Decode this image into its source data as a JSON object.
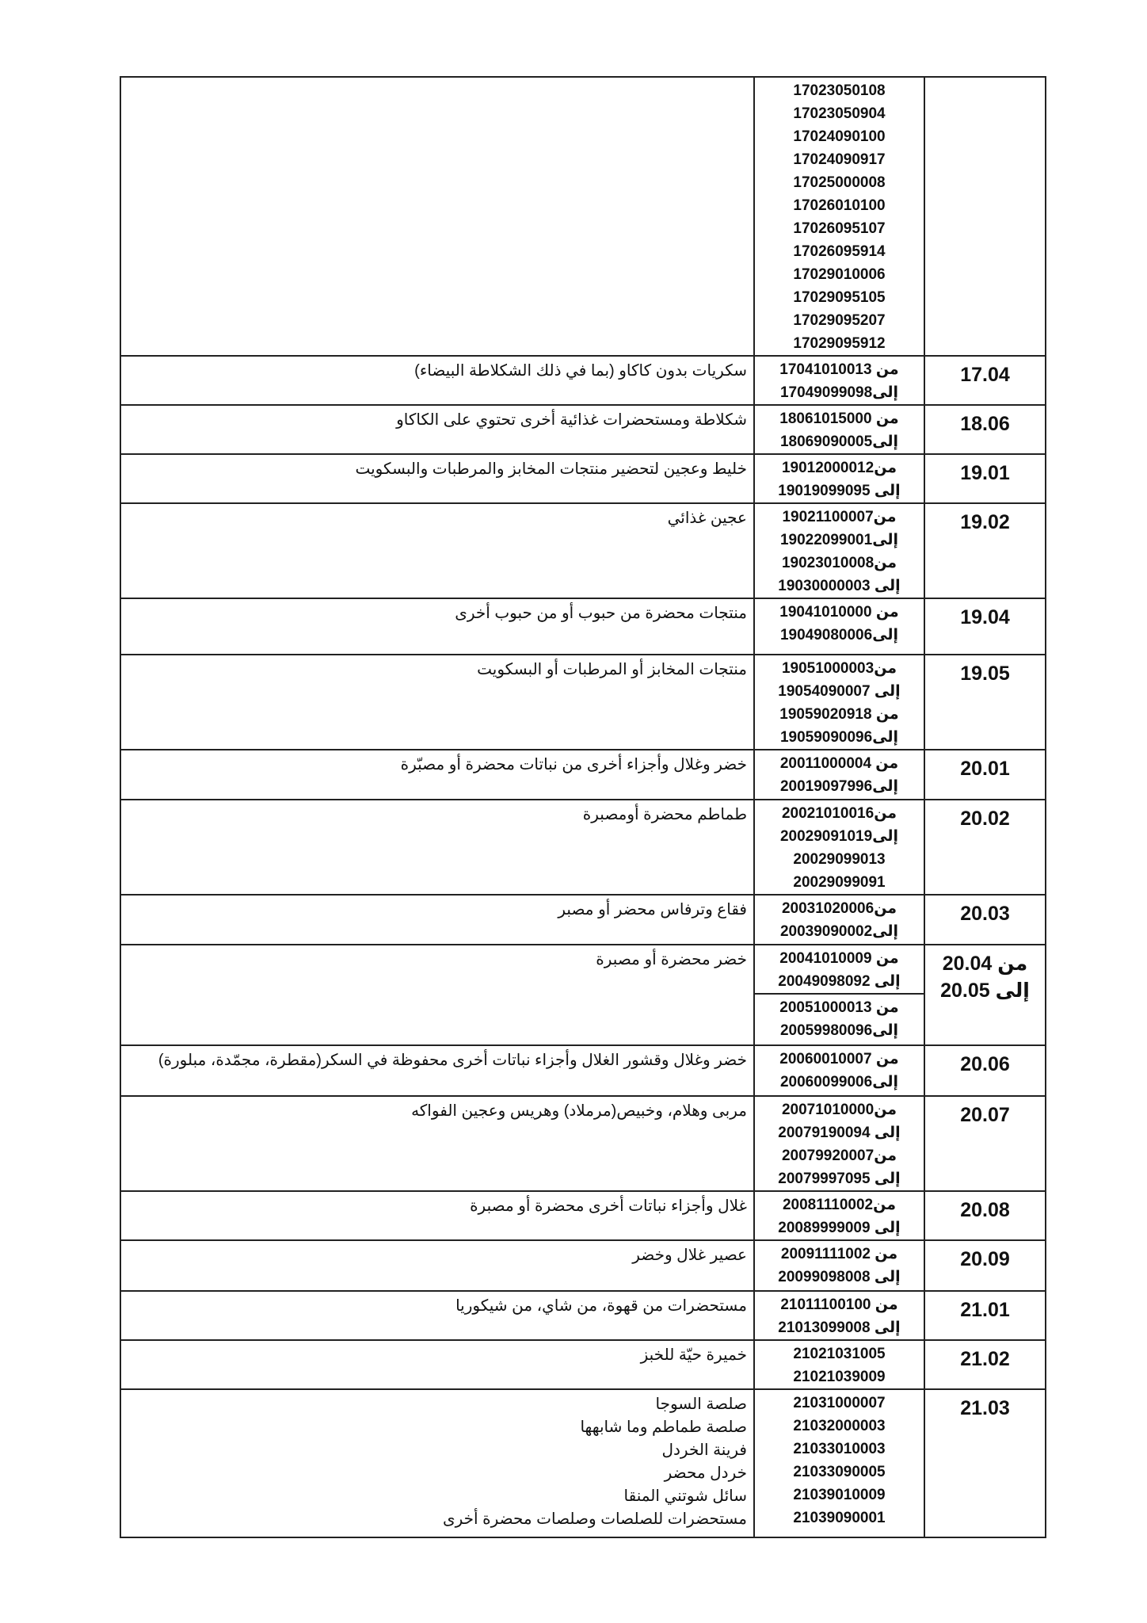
{
  "rows": [
    {
      "heading": "",
      "desc": [],
      "codes": [
        [
          "17023050108",
          "17023050904",
          "17024090100",
          "17024090917",
          "17025000008",
          "17026010100",
          "17026095107",
          "17026095914",
          "17029010006",
          "17029095105",
          "17029095207",
          "17029095912"
        ]
      ]
    },
    {
      "heading": "17.04",
      "desc": [
        "سكريات بدون كاكاو (بما في ذلك الشكلاطة البيضاء)"
      ],
      "codes": [
        [
          "من 17041010013",
          "إلى17049099098"
        ]
      ]
    },
    {
      "heading": "18.06",
      "desc": [
        "شكلاطة ومستحضرات غذائية أخرى تحتوي على الكاكاو"
      ],
      "codes": [
        [
          "من 18061015000",
          "إلى18069090005"
        ]
      ]
    },
    {
      "heading": "19.01",
      "desc": [
        "خليط وعجين لتحضير منتجات المخابز والمرطبات والبسكويت"
      ],
      "codes": [
        [
          "من19012000012",
          "إلى 19019099095"
        ]
      ]
    },
    {
      "heading": "19.02",
      "desc": [
        "عجين غذائي"
      ],
      "codes": [
        [
          "من19021100007",
          "إلى19022099001",
          "من19023010008",
          "إلى 19030000003"
        ]
      ]
    },
    {
      "heading": "19.04",
      "desc": [
        "منتجات محضرة من حبوب أو من حبوب أخرى"
      ],
      "codes": [
        [
          "من 19041010000",
          "إلى19049080006"
        ]
      ]
    },
    {
      "heading": "19.05",
      "desc": [
        "منتجات المخابز أو المرطبات أو البسكويت"
      ],
      "codes": [
        [
          "من19051000003",
          "إلى 19054090007",
          "من 19059020918",
          "إلى19059090096"
        ]
      ]
    },
    {
      "heading": "20.01",
      "desc": [
        "خضر وغلال وأجزاء أخرى من نباتات محضرة أو مصبّرة"
      ],
      "codes": [
        [
          "من 20011000004",
          "إلى20019097996"
        ]
      ]
    },
    {
      "heading": "20.02",
      "desc": [
        "طماطم محضرة أومصبرة"
      ],
      "codes": [
        [
          "من20021010016",
          "إلى20029091019",
          "20029099013",
          "20029099091"
        ]
      ]
    },
    {
      "heading": "20.03",
      "desc": [
        "فقاع وترفاس محضر أو مصبر"
      ],
      "codes": [
        [
          "من20031020006",
          "إلى20039090002"
        ]
      ]
    },
    {
      "heading": "من 20.04 إلى 20.05",
      "desc": [
        "خضر محضرة أو مصبرة"
      ],
      "codes": [
        [
          "من 20041010009",
          "إلى 20049098092"
        ],
        [
          "من 20051000013",
          "إلى20059980096"
        ]
      ]
    },
    {
      "heading": "20.06",
      "desc": [
        "خضر وغلال وقشور الغلال وأجزاء نباتات أخرى محفوظة في السكر(مقطرة، مجمّدة، مبلورة)"
      ],
      "codes": [
        [
          "من 20060010007",
          "إلى20060099006"
        ]
      ]
    },
    {
      "heading": "20.07",
      "desc": [
        "مربى وهلام، وخبيص(مرملاد) وهريس وعجين الفواكه"
      ],
      "codes": [
        [
          "من20071010000",
          "إلى 20079190094",
          "من20079920007",
          "إلى 20079997095"
        ]
      ]
    },
    {
      "heading": "20.08",
      "desc": [
        "غلال وأجزاء نباتات أخرى محضرة أو مصبرة"
      ],
      "codes": [
        [
          "من20081110002",
          "إلى 20089999009"
        ]
      ]
    },
    {
      "heading": "20.09",
      "desc": [
        "عصير غلال وخضر"
      ],
      "codes": [
        [
          "من 20091111002",
          "إلى 20099098008"
        ]
      ]
    },
    {
      "heading": "21.01",
      "desc": [
        "مستحضرات من قهوة، من شاي، من شيكوريا"
      ],
      "codes": [
        [
          "من 21011100100",
          "إلى 21013099008"
        ]
      ]
    },
    {
      "heading": "21.02",
      "desc": [
        "خميرة حيّة للخبز"
      ],
      "codes": [
        [
          "21021031005",
          "21021039009"
        ]
      ]
    },
    {
      "heading": "21.03",
      "desc": [
        "صلصة السوجا",
        "صلصة طماطم وما شابهها",
        "فرينة الخردل",
        "خردل محضر",
        "سائل شوتني المنقا",
        "مستحضرات للصلصات وصلصات محضرة أخرى"
      ],
      "codes": [
        [
          "21031000007",
          "21032000003",
          "21033010003",
          "21033090005",
          "21039010009",
          "21039090001"
        ]
      ]
    }
  ]
}
